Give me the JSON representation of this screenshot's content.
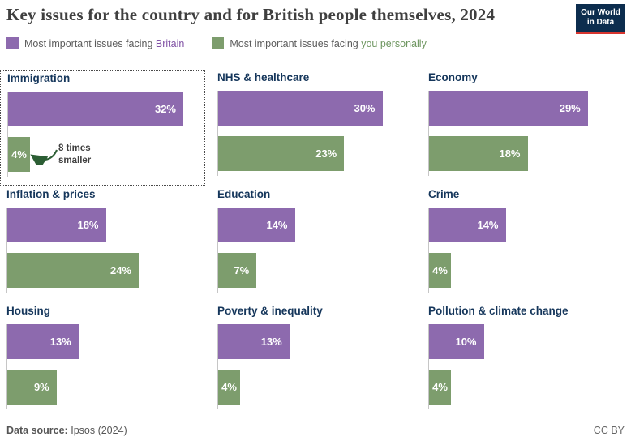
{
  "header": {
    "title": "Key issues for the country and for British people themselves, 2024",
    "logo_line1": "Our World",
    "logo_line2": "in Data"
  },
  "legend": {
    "britain_prefix": "Most important issues facing",
    "britain_highlight": "Britain",
    "personally_prefix": "Most important issues facing",
    "personally_highlight": "you personally"
  },
  "colors": {
    "britain_bar": "#8d6aae",
    "personally_bar": "#7d9d6d",
    "panel_title": "#15365b",
    "logo_bg": "#0c2d4e",
    "logo_underline": "#d7352f",
    "annotation_arrow": "#2c5e34"
  },
  "chart_data": {
    "type": "bar",
    "orientation": "horizontal",
    "unit": "%",
    "title": "Key issues for the country and for British people themselves, 2024",
    "legend_position": "top",
    "grid": false,
    "xlim": [
      0,
      33
    ],
    "series": [
      {
        "name": "Most important issues facing Britain",
        "color": "#8d6aae",
        "values": [
          32,
          30,
          29,
          18,
          14,
          14,
          13,
          13,
          10
        ]
      },
      {
        "name": "Most important issues facing you personally",
        "color": "#7d9d6d",
        "values": [
          4,
          23,
          18,
          24,
          7,
          4,
          9,
          4,
          4
        ]
      }
    ],
    "categories": [
      "Immigration",
      "NHS & healthcare",
      "Economy",
      "Inflation & prices",
      "Education",
      "Crime",
      "Housing",
      "Poverty & inequality",
      "Pollution & climate change"
    ],
    "panels": [
      {
        "title": "Immigration",
        "britain": 32,
        "britain_label": "32%",
        "personally": 4,
        "personally_label": "4%",
        "annotation": "8 times smaller",
        "highlighted": true
      },
      {
        "title": "NHS & healthcare",
        "britain": 30,
        "britain_label": "30%",
        "personally": 23,
        "personally_label": "23%"
      },
      {
        "title": "Economy",
        "britain": 29,
        "britain_label": "29%",
        "personally": 18,
        "personally_label": "18%"
      },
      {
        "title": "Inflation & prices",
        "britain": 18,
        "britain_label": "18%",
        "personally": 24,
        "personally_label": "24%"
      },
      {
        "title": "Education",
        "britain": 14,
        "britain_label": "14%",
        "personally": 7,
        "personally_label": "7%"
      },
      {
        "title": "Crime",
        "britain": 14,
        "britain_label": "14%",
        "personally": 4,
        "personally_label": "4%"
      },
      {
        "title": "Housing",
        "britain": 13,
        "britain_label": "13%",
        "personally": 9,
        "personally_label": "9%"
      },
      {
        "title": "Poverty & inequality",
        "britain": 13,
        "britain_label": "13%",
        "personally": 4,
        "personally_label": "4%"
      },
      {
        "title": "Pollution & climate change",
        "britain": 10,
        "britain_label": "10%",
        "personally": 4,
        "personally_label": "4%"
      }
    ]
  },
  "footer": {
    "source_label": "Data source:",
    "source_value": "Ipsos (2024)",
    "license": "CC BY"
  }
}
